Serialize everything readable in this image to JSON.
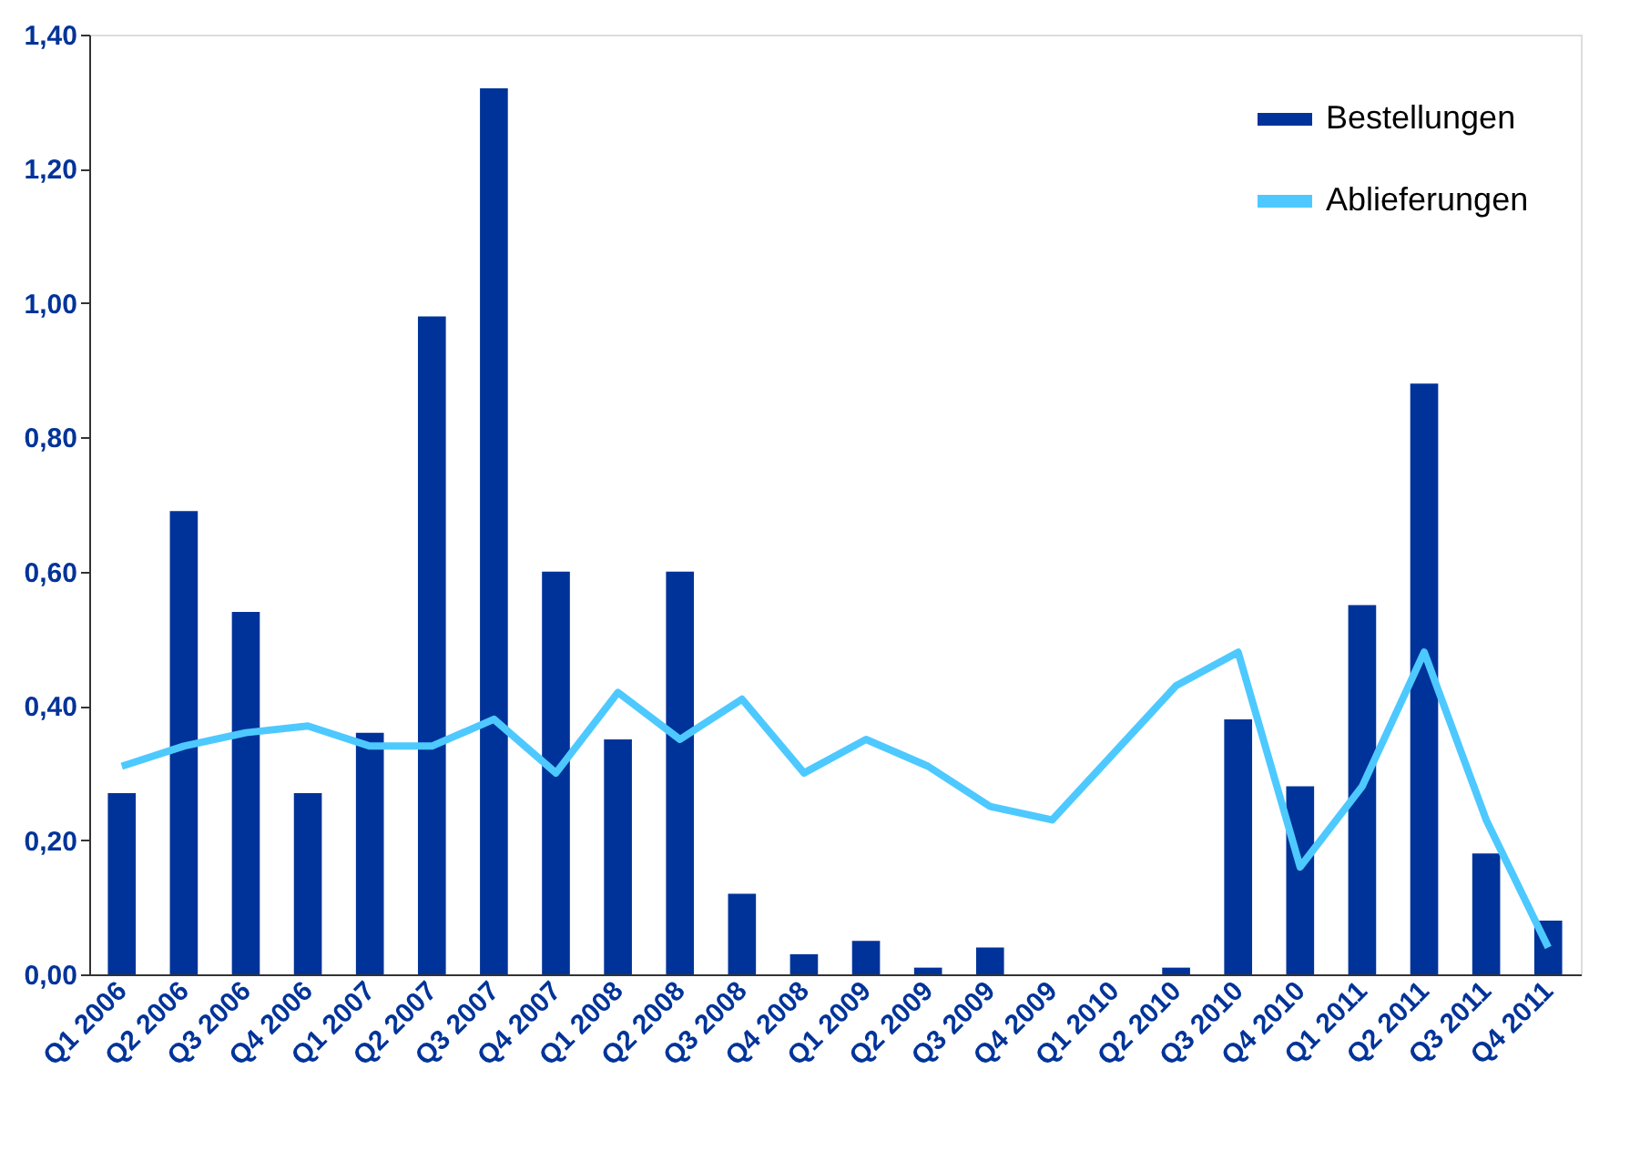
{
  "chart_data": {
    "type": "bar",
    "categories": [
      "Q1 2006",
      "Q2 2006",
      "Q3 2006",
      "Q4 2006",
      "Q1 2007",
      "Q2 2007",
      "Q3 2007",
      "Q4 2007",
      "Q1 2008",
      "Q2 2008",
      "Q3 2008",
      "Q4 2008",
      "Q1 2009",
      "Q2 2009",
      "Q3 2009",
      "Q4 2009",
      "Q1 2010",
      "Q2 2010",
      "Q3 2010",
      "Q4 2010",
      "Q1 2011",
      "Q2 2011",
      "Q3 2011",
      "Q4 2011"
    ],
    "series": [
      {
        "name": "Bestellungen",
        "color": "#003399",
        "values": [
          0.27,
          0.69,
          0.54,
          0.27,
          0.36,
          0.98,
          1.32,
          0.6,
          0.35,
          0.6,
          0.12,
          0.03,
          0.05,
          0.01,
          0.04,
          0,
          0,
          0.01,
          0.38,
          0.28,
          0.55,
          0.88,
          0.18,
          0.08
        ]
      },
      {
        "name": "Ablieferungen",
        "type": "line",
        "color": "#4dc9ff",
        "values": [
          0.31,
          0.34,
          0.36,
          0.37,
          0.34,
          0.34,
          0.38,
          0.3,
          0.42,
          0.35,
          0.41,
          0.3,
          0.35,
          0.31,
          0.25,
          0.23,
          0.33,
          0.43,
          0.48,
          0.16,
          0.28,
          0.48,
          0.23,
          0.04
        ]
      }
    ],
    "ylim": [
      0,
      1.4
    ],
    "yticks": [
      {
        "value": 0,
        "label": "0,00"
      },
      {
        "value": 0.2,
        "label": "0,20"
      },
      {
        "value": 0.4,
        "label": "0,40"
      },
      {
        "value": 0.6,
        "label": "0,60"
      },
      {
        "value": 0.8,
        "label": "0,80"
      },
      {
        "value": 1.0,
        "label": "1,00"
      },
      {
        "value": 1.2,
        "label": "1,20"
      },
      {
        "value": 1.4,
        "label": "1,40"
      }
    ],
    "grid": false,
    "legend": "top right"
  }
}
